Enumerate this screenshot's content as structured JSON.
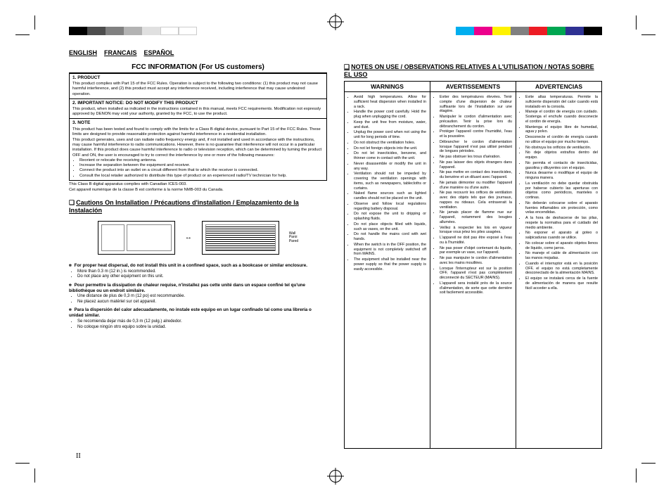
{
  "colorbar_left": [
    "#000000",
    "#4d4d4d",
    "#808080",
    "#b3b3b3",
    "#e0e0e0",
    "#ffffff",
    "#ffffff"
  ],
  "colorbar_right": [
    "#00aeef",
    "#ec008c",
    "#fff200",
    "#808080",
    "#ed1c24",
    "#00a651",
    "#2e3192",
    "#000000"
  ],
  "lang_tabs": [
    "ENGLISH",
    "FRANCAIS",
    "ESPAÑOL"
  ],
  "fcc": {
    "title": "FCC INFORMATION (For US customers)",
    "s1_head": "1. PRODUCT",
    "s1_text": "This product complies with Part 15 of the FCC Rules. Operation is subject to the following two conditions: (1) this product may not cause harmful interference, and (2) this product must accept any interference received, including interference that may cause undesired operation.",
    "s2_head": "2. IMPORTANT NOTICE: DO NOT MODIFY THIS PRODUCT",
    "s2_text": "This product, when installed as indicated in the instructions contained in this manual, meets FCC requirements. Modification not expressly approved by DENON may void your authority, granted by the FCC, to use the product.",
    "s3_head": "3. NOTE",
    "s3_text1": "This product has been tested and found to comply with the limits for a Class B digital device, pursuant to Part 15 of the FCC Rules. These limits are designed to provide reasonable protection against harmful interference in a residential installation.",
    "s3_text2": "This product generates, uses and can radiate radio frequency energy and, if not installed and used in accordance with the instructions, may cause harmful interference to radio communications. However, there is no guarantee that interference will not occur in a particular installation. If this product does cause harmful interference to radio or television reception, which can be determined by turning the product OFF and ON, the user is encouraged to try to correct the interference by one or more of the following measures:",
    "s3_list": [
      "Reorient or relocate the receiving antenna.",
      "Increase the separation between the equipment and receiver.",
      "Connect the product into an outlet on a circuit different from that to which the receiver is connected.",
      "Consult the local retailer authorized to distribute this type of product or an experienced radio/TV technician for help."
    ],
    "note1": "This Class B digital apparatus complies with Canadian ICES-003.",
    "note2": "Cet appareil numérique de la classe B est conforme à la norme NMB-003 du Canada."
  },
  "cautions": {
    "heading": "Cautions On Installation / Précautions d'installation / Emplazamiento de la Instalación",
    "wall_labels": "Wall\nParoi\nPared",
    "en_lead": "For proper heat dispersal, do not install this unit in a confined space, such as a bookcase or similar enclosure.",
    "en_items": [
      "More than 0.3 m (12 in.) is recommended.",
      "Do not place any other equipment on this unit."
    ],
    "fr_lead": "Pour permettre la dissipation de chaleur requise, n'installez pas cette unité dans un espace confiné tel qu'une bibliothèque ou un endroit similaire.",
    "fr_items": [
      "Une distance de plus de 0,3 m (12 po) est recommandée.",
      "Ne placez aucun matériel sur cet appareil."
    ],
    "es_lead": "Para la dispersión del calor adecuadamente, no instale este equipo en un lugar confinado tal como una librería o unidad similar.",
    "es_items": [
      "Se recomienda dejar más de 0,3 m (12 pulg.) alrededor.",
      "No coloque ningún otro equipo sobre la unidad."
    ]
  },
  "notes": {
    "heading": "NOTES ON USE / OBSERVATIONS RELATIVES A L'UTILISATION / NOTAS SOBRE EL USO",
    "col1_title": "WARNINGS",
    "col2_title": "AVERTISSEMENTS",
    "col3_title": "ADVERTENCIAS",
    "col1": [
      "Avoid high temperatures. Allow for sufficient heat dispersion when installed in a rack.",
      "Handle the power cord carefully. Hold the plug when unplugging the cord.",
      "Keep the unit free from moisture, water, and dust.",
      "Unplug the power cord when not using the unit for long periods of time.",
      "Do not obstruct the ventilation holes.",
      "Do not let foreign objects into the unit.",
      "Do not let insecticides, benzene, and thinner come in contact with the unit.",
      "Never disassemble or modify the unit in any way.",
      "Ventilation should not be impeded by covering the ventilation openings with items, such as newspapers, tablecloths or curtains.",
      "Naked flame sources such as lighted candles should not be placed on the unit.",
      "Observe and follow local regulations regarding battery disposal.",
      "Do not expose the unit to dripping or splashing fluids.",
      "Do not place objects filled with liquids, such as vases, on the unit.",
      "Do not handle the mains cord with wet hands.",
      "When the switch is in the OFF position, the equipment is not completely switched off from MAINS.",
      "The equipment shall be installed near the power supply so that the power supply is easily accessible."
    ],
    "col2": [
      "Eviter des températures élevées. Tenir compte d'une dispersion de chaleur suffisante lors de l'installation sur une étagère.",
      "Manipuler le cordon d'alimentation avec précaution. Tenir la prise lors du débranchement du cordon.",
      "Protéger l'appareil contre l'humidité, l'eau et la poussière.",
      "Débrancher le cordon d'alimentation lorsque l'appareil n'est pas utilisé pendant de longues périodes.",
      "Ne pas obstruer les trous d'aération.",
      "Ne pas laisser des objets étrangers dans l'appareil.",
      "Ne pas mettre en contact des insecticides, du benzène et un diluant avec l'appareil.",
      "Ne jamais démonter ou modifier l'appareil d'une manière ou d'une autre.",
      "Ne pas recouvrir les orifices de ventilation avec des objets tels que des journaux, nappes ou rideaux. Cela entraverait la ventilation.",
      "Ne jamais placer de flamme nue sur l'appareil, notamment des bougies allumées.",
      "Veillez à respecter les lois en vigueur lorsque vous jetez les piles usagées.",
      "L'appareil ne doit pas être exposé à l'eau ou à l'humidité.",
      "Ne pas poser d'objet contenant du liquide, par exemple un vase, sur l'appareil.",
      "Ne pas manipuler le cordon d'alimentation avec les mains mouillées.",
      "Lorsque l'interrupteur est sur la position OFF, l'appareil n'est pas complètement déconnecté du SECTEUR (MAINS).",
      "L'appareil sera installé près de la source d'alimentation, de sorte que cette dernière soit facilement accessible."
    ],
    "col3": [
      "Evite altas temperaturas. Permite la suficiente dispersión del calor cuando está instalado en la consola.",
      "Maneje el cordón de energía con cuidado. Sostenga el enchufe cuando desconecte el cordón de energía.",
      "Mantenga el equipo libre de humedad, agua y polvo.",
      "Desconecte el cordón de energía cuando no utilice el equipo por mucho tiempo.",
      "No obstruya los orificios de ventilación.",
      "No deje objetos extraños dentro del equipo.",
      "No permita el contacto de insecticidas, gasolina y diluyentes con el equipo.",
      "Nunca desarme o modifique el equipo de ninguna manera.",
      "La ventilación no debe quedar obstruida por haberse cubierto las aperturas con objetos como periódicos, manteles o cortinas.",
      "No deberán colocarse sobre el aparato fuentes inflamables sin protección, como velas encendidas.",
      "A la hora de deshacerse de las pilas, respete la normativa para el cuidado del medio ambiente.",
      "No exponer el aparato al goteo o salpicaduras cuando se utilice.",
      "No colocar sobre el aparato objetos llenos de líquido, como jarros.",
      "No maneje el cable de alimentación con las manos mojadas.",
      "Cuando el interruptor está en la posición OFF, el equipo no está completamente desconectado de la alimentación MAINS.",
      "El equipo se instalará cerca de la fuente de alimentación de manera que resulte fácil acceder a ella."
    ]
  },
  "page_num": "II"
}
